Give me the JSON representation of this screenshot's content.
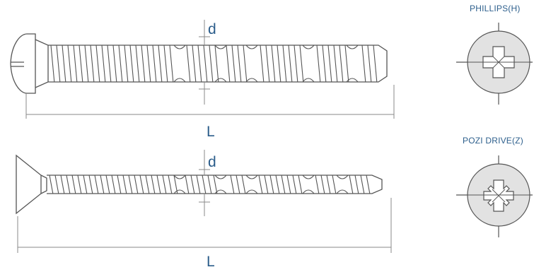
{
  "screw_pan": {
    "diameter_label": "d",
    "length_label": "L"
  },
  "screw_flat": {
    "diameter_label": "d",
    "length_label": "L"
  },
  "drive_phillips": {
    "caption": "PHILLIPS(H)"
  },
  "drive_pozi": {
    "caption": "POZI DRIVE(Z)"
  },
  "colors": {
    "line": "#555555",
    "label": "#2a5c8a",
    "head_fill": "#e2e2e2",
    "dimension": "#8a8a8a"
  },
  "icons": {
    "phillips": "phillips-cross-icon",
    "pozi": "pozi-drive-star-icon"
  }
}
